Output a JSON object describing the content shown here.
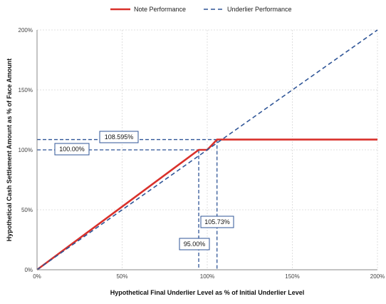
{
  "chart_data": {
    "type": "line",
    "xlabel": "Hypothetical Final Underlier Level as % of Initial Underlier Level",
    "ylabel": "Hypothetical Cash Settlement Amount as % of Face Amount",
    "xlim": [
      0,
      200
    ],
    "ylim": [
      0,
      200
    ],
    "x_ticks": [
      "0%",
      "50%",
      "100%",
      "150%",
      "200%"
    ],
    "y_ticks": [
      "0%",
      "50%",
      "100%",
      "150%",
      "200%"
    ],
    "grid": true,
    "legend_position": "top-center",
    "series": [
      {
        "name": "Note Performance",
        "color": "#d9312b",
        "style": "solid",
        "x": [
          0,
          95,
          100,
          105.73,
          200
        ],
        "y": [
          0,
          100,
          100,
          108.595,
          108.595
        ]
      },
      {
        "name": "Underlier Performance",
        "color": "#2f5597",
        "style": "dashed",
        "x": [
          0,
          200
        ],
        "y": [
          0,
          200
        ]
      }
    ],
    "annotations": [
      {
        "text": "108.595%"
      },
      {
        "text": "100.00%"
      },
      {
        "text": "105.73%"
      },
      {
        "text": "95.00%"
      }
    ]
  }
}
